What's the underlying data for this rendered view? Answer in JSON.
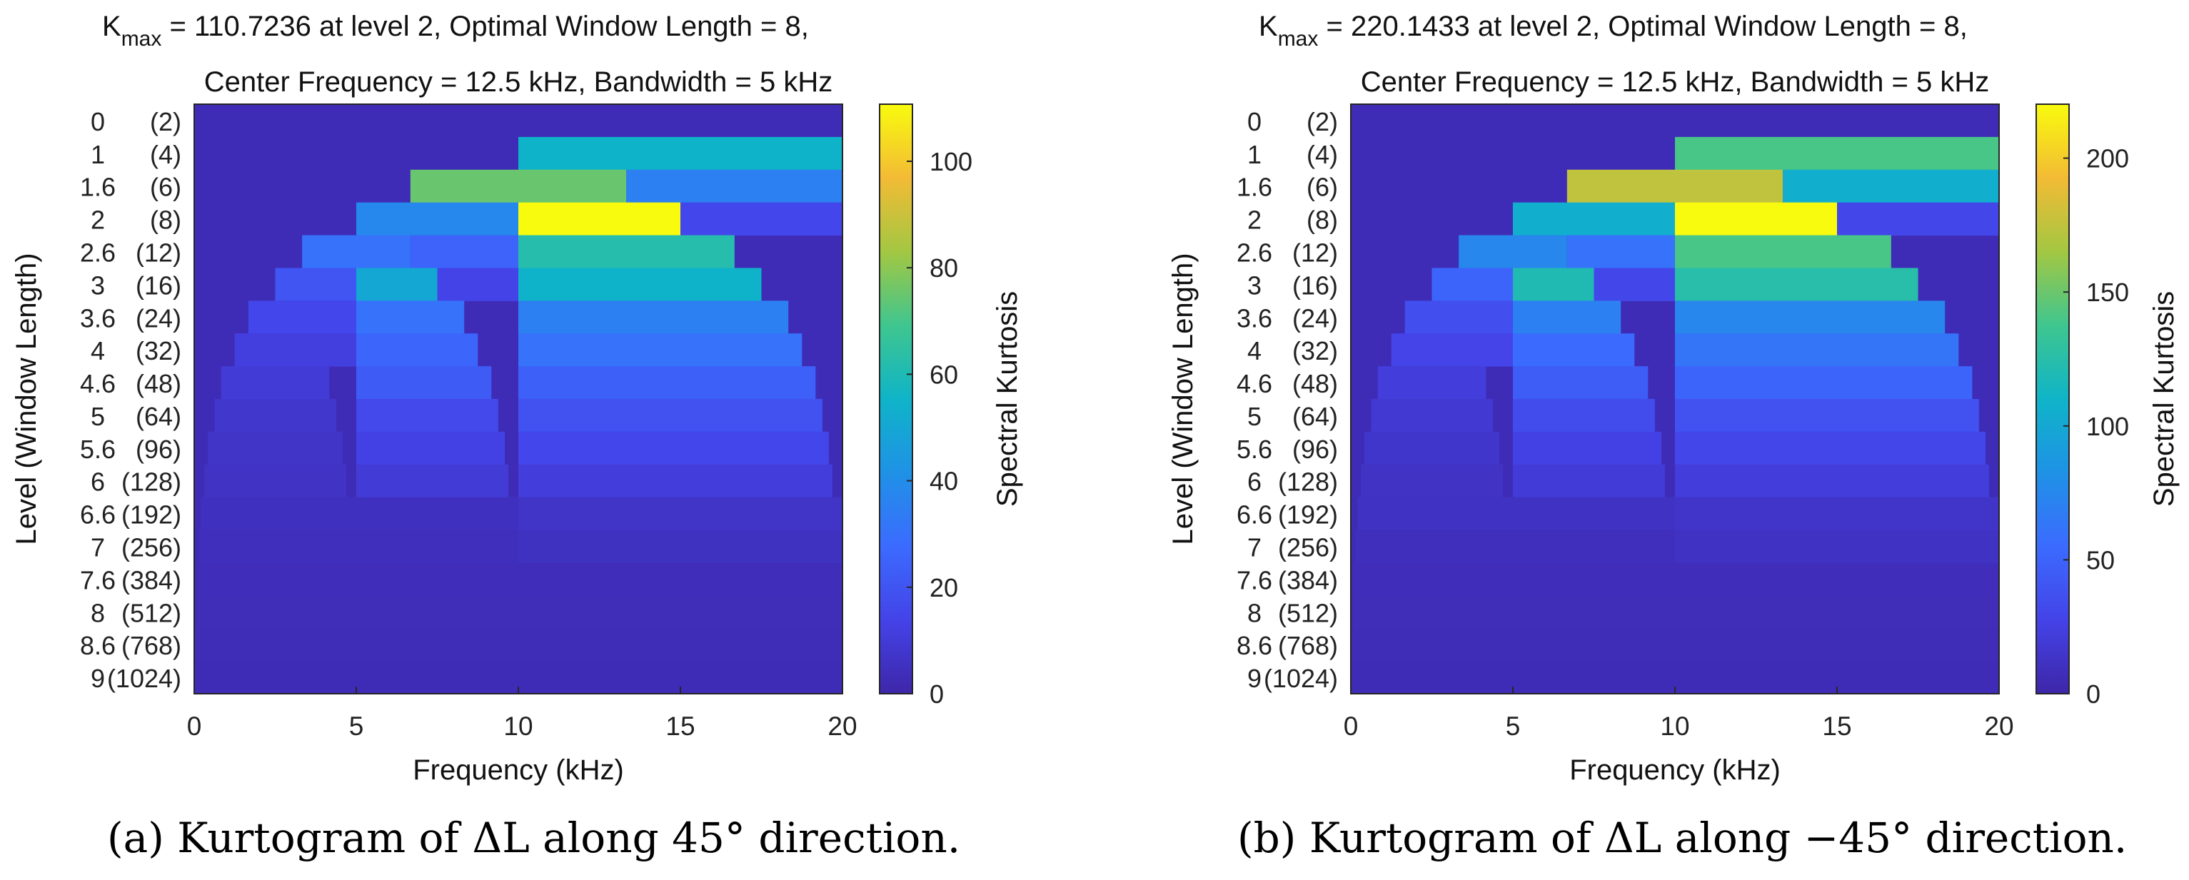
{
  "chart_data": [
    {
      "type": "heatmap",
      "panel": "a",
      "title_line1_prefix": "K",
      "title_line1_sub": "max",
      "title_line1_rest": " = 110.7236 at level 2, Optimal Window Length = 8,",
      "title_line2": "Center Frequency = 12.5 kHz, Bandwidth = 5 kHz",
      "xlabel": "Frequency (kHz)",
      "ylabel": "Level (Window Length)",
      "xlim": [
        0,
        20
      ],
      "xticks": [
        "0",
        "5",
        "10",
        "15",
        "20"
      ],
      "ytick_levels": [
        "0",
        "1",
        "1.6",
        "2",
        "2.6",
        "3",
        "3.6",
        "4",
        "4.6",
        "5",
        "5.6",
        "6",
        "6.6",
        "7",
        "7.6",
        "8",
        "8.6",
        "9"
      ],
      "ytick_windows": [
        "(2)",
        "(4)",
        "(6)",
        "(8)",
        "(12)",
        "(16)",
        "(24)",
        "(32)",
        "(48)",
        "(64)",
        "(96)",
        "(128)",
        "(192)",
        "(256)",
        "(384)",
        "(512)",
        "(768)",
        "(1024)"
      ],
      "colorbar_label": "Spectral Kurtosis",
      "clim": [
        0,
        110.7236
      ],
      "colorbar_ticks": [
        0,
        20,
        40,
        60,
        80,
        100
      ],
      "background_value": 3,
      "cells": [
        {
          "level_index": 1,
          "f0": 10,
          "f1": 20,
          "value": 55
        },
        {
          "level_index": 2,
          "f0": 6.67,
          "f1": 13.33,
          "value": 75
        },
        {
          "level_index": 2,
          "f0": 13.33,
          "f1": 20,
          "value": 35
        },
        {
          "level_index": 3,
          "f0": 5,
          "f1": 10,
          "value": 38
        },
        {
          "level_index": 3,
          "f0": 10,
          "f1": 15,
          "value": 110.7
        },
        {
          "level_index": 3,
          "f0": 15,
          "f1": 20,
          "value": 15
        },
        {
          "level_index": 4,
          "f0": 3.33,
          "f1": 6.67,
          "value": 30
        },
        {
          "level_index": 4,
          "f0": 6.67,
          "f1": 10,
          "value": 25
        },
        {
          "level_index": 4,
          "f0": 10,
          "f1": 16.67,
          "value": 62
        },
        {
          "level_index": 5,
          "f0": 2.5,
          "f1": 5,
          "value": 20
        },
        {
          "level_index": 5,
          "f0": 5,
          "f1": 7.5,
          "value": 50
        },
        {
          "level_index": 5,
          "f0": 7.5,
          "f1": 10,
          "value": 14
        },
        {
          "level_index": 5,
          "f0": 10,
          "f1": 17.5,
          "value": 55
        },
        {
          "level_index": 6,
          "f0": 1.67,
          "f1": 5,
          "value": 15
        },
        {
          "level_index": 6,
          "f0": 5,
          "f1": 8.33,
          "value": 30
        },
        {
          "level_index": 6,
          "f0": 10,
          "f1": 18.33,
          "value": 35
        },
        {
          "level_index": 7,
          "f0": 1.25,
          "f1": 5,
          "value": 12
        },
        {
          "level_index": 7,
          "f0": 5,
          "f1": 8.75,
          "value": 26
        },
        {
          "level_index": 7,
          "f0": 10,
          "f1": 18.75,
          "value": 30
        },
        {
          "level_index": 8,
          "f0": 0.83,
          "f1": 4.17,
          "value": 10
        },
        {
          "level_index": 8,
          "f0": 5,
          "f1": 9.17,
          "value": 22
        },
        {
          "level_index": 8,
          "f0": 10,
          "f1": 19.17,
          "value": 24
        },
        {
          "level_index": 9,
          "f0": 0.63,
          "f1": 4.38,
          "value": 8
        },
        {
          "level_index": 9,
          "f0": 5,
          "f1": 9.38,
          "value": 16
        },
        {
          "level_index": 9,
          "f0": 10,
          "f1": 19.38,
          "value": 19
        },
        {
          "level_index": 10,
          "f0": 0.42,
          "f1": 4.58,
          "value": 7
        },
        {
          "level_index": 10,
          "f0": 5,
          "f1": 9.58,
          "value": 13
        },
        {
          "level_index": 10,
          "f0": 10,
          "f1": 19.58,
          "value": 15
        },
        {
          "level_index": 11,
          "f0": 0.31,
          "f1": 4.69,
          "value": 6
        },
        {
          "level_index": 11,
          "f0": 5,
          "f1": 9.69,
          "value": 10
        },
        {
          "level_index": 11,
          "f0": 10,
          "f1": 19.69,
          "value": 11
        },
        {
          "level_index": 12,
          "f0": 0.21,
          "f1": 10,
          "value": 5
        },
        {
          "level_index": 12,
          "f0": 10,
          "f1": 20,
          "value": 7
        },
        {
          "level_index": 13,
          "f0": 0.16,
          "f1": 10,
          "value": 4.5
        },
        {
          "level_index": 13,
          "f0": 10,
          "f1": 20,
          "value": 5.5
        },
        {
          "level_index": 14,
          "f0": 0.1,
          "f1": 20,
          "value": 4
        },
        {
          "level_index": 15,
          "f0": 0.08,
          "f1": 20,
          "value": 3.5
        },
        {
          "level_index": 16,
          "f0": 0.05,
          "f1": 20,
          "value": 3.2
        },
        {
          "level_index": 17,
          "f0": 0.04,
          "f1": 20,
          "value": 3
        }
      ],
      "caption": "(a)  Kurtogram of ΔL along 45° direction."
    },
    {
      "type": "heatmap",
      "panel": "b",
      "title_line1_prefix": "K",
      "title_line1_sub": "max",
      "title_line1_rest": " = 220.1433 at level 2, Optimal Window Length = 8,",
      "title_line2": "Center Frequency = 12.5 kHz, Bandwidth = 5 kHz",
      "xlabel": "Frequency (kHz)",
      "ylabel": "Level (Window Length)",
      "xlim": [
        0,
        20
      ],
      "xticks": [
        "0",
        "5",
        "10",
        "15",
        "20"
      ],
      "ytick_levels": [
        "0",
        "1",
        "1.6",
        "2",
        "2.6",
        "3",
        "3.6",
        "4",
        "4.6",
        "5",
        "5.6",
        "6",
        "6.6",
        "7",
        "7.6",
        "8",
        "8.6",
        "9"
      ],
      "ytick_windows": [
        "(2)",
        "(4)",
        "(6)",
        "(8)",
        "(12)",
        "(16)",
        "(24)",
        "(32)",
        "(48)",
        "(64)",
        "(96)",
        "(128)",
        "(192)",
        "(256)",
        "(384)",
        "(512)",
        "(768)",
        "(1024)"
      ],
      "colorbar_label": "Spectral Kurtosis",
      "clim": [
        0,
        220.1433
      ],
      "colorbar_ticks": [
        0,
        50,
        100,
        150,
        200
      ],
      "background_value": 6,
      "cells": [
        {
          "level_index": 1,
          "f0": 10,
          "f1": 20,
          "value": 140
        },
        {
          "level_index": 2,
          "f0": 6.67,
          "f1": 13.33,
          "value": 175
        },
        {
          "level_index": 2,
          "f0": 13.33,
          "f1": 20,
          "value": 105
        },
        {
          "level_index": 3,
          "f0": 5,
          "f1": 10,
          "value": 105
        },
        {
          "level_index": 3,
          "f0": 10,
          "f1": 15,
          "value": 220.1
        },
        {
          "level_index": 3,
          "f0": 15,
          "f1": 20,
          "value": 30
        },
        {
          "level_index": 4,
          "f0": 3.33,
          "f1": 6.67,
          "value": 75
        },
        {
          "level_index": 4,
          "f0": 6.67,
          "f1": 10,
          "value": 60
        },
        {
          "level_index": 4,
          "f0": 10,
          "f1": 16.67,
          "value": 140
        },
        {
          "level_index": 5,
          "f0": 2.5,
          "f1": 5,
          "value": 50
        },
        {
          "level_index": 5,
          "f0": 5,
          "f1": 7.5,
          "value": 120
        },
        {
          "level_index": 5,
          "f0": 7.5,
          "f1": 10,
          "value": 30
        },
        {
          "level_index": 5,
          "f0": 10,
          "f1": 17.5,
          "value": 125
        },
        {
          "level_index": 6,
          "f0": 1.67,
          "f1": 5,
          "value": 35
        },
        {
          "level_index": 6,
          "f0": 5,
          "f1": 8.33,
          "value": 70
        },
        {
          "level_index": 6,
          "f0": 10,
          "f1": 18.33,
          "value": 75
        },
        {
          "level_index": 7,
          "f0": 1.25,
          "f1": 5,
          "value": 28
        },
        {
          "level_index": 7,
          "f0": 5,
          "f1": 8.75,
          "value": 55
        },
        {
          "level_index": 7,
          "f0": 10,
          "f1": 18.75,
          "value": 62
        },
        {
          "level_index": 8,
          "f0": 0.83,
          "f1": 4.17,
          "value": 22
        },
        {
          "level_index": 8,
          "f0": 5,
          "f1": 9.17,
          "value": 45
        },
        {
          "level_index": 8,
          "f0": 10,
          "f1": 19.17,
          "value": 50
        },
        {
          "level_index": 9,
          "f0": 0.63,
          "f1": 4.38,
          "value": 18
        },
        {
          "level_index": 9,
          "f0": 5,
          "f1": 9.38,
          "value": 34
        },
        {
          "level_index": 9,
          "f0": 10,
          "f1": 19.38,
          "value": 38
        },
        {
          "level_index": 10,
          "f0": 0.42,
          "f1": 4.58,
          "value": 15
        },
        {
          "level_index": 10,
          "f0": 5,
          "f1": 9.58,
          "value": 26
        },
        {
          "level_index": 10,
          "f0": 10,
          "f1": 19.58,
          "value": 30
        },
        {
          "level_index": 11,
          "f0": 0.31,
          "f1": 4.69,
          "value": 12
        },
        {
          "level_index": 11,
          "f0": 5,
          "f1": 9.69,
          "value": 20
        },
        {
          "level_index": 11,
          "f0": 10,
          "f1": 19.69,
          "value": 22
        },
        {
          "level_index": 12,
          "f0": 0.21,
          "f1": 10,
          "value": 11
        },
        {
          "level_index": 12,
          "f0": 10,
          "f1": 20,
          "value": 14
        },
        {
          "level_index": 13,
          "f0": 0.16,
          "f1": 10,
          "value": 9
        },
        {
          "level_index": 13,
          "f0": 10,
          "f1": 20,
          "value": 11
        },
        {
          "level_index": 14,
          "f0": 0.1,
          "f1": 20,
          "value": 8
        },
        {
          "level_index": 15,
          "f0": 0.08,
          "f1": 20,
          "value": 7
        },
        {
          "level_index": 16,
          "f0": 0.05,
          "f1": 20,
          "value": 6.5
        },
        {
          "level_index": 17,
          "f0": 0.04,
          "f1": 20,
          "value": 6
        }
      ],
      "caption": "(b)  Kurtogram of ΔL along −45° direction."
    }
  ]
}
